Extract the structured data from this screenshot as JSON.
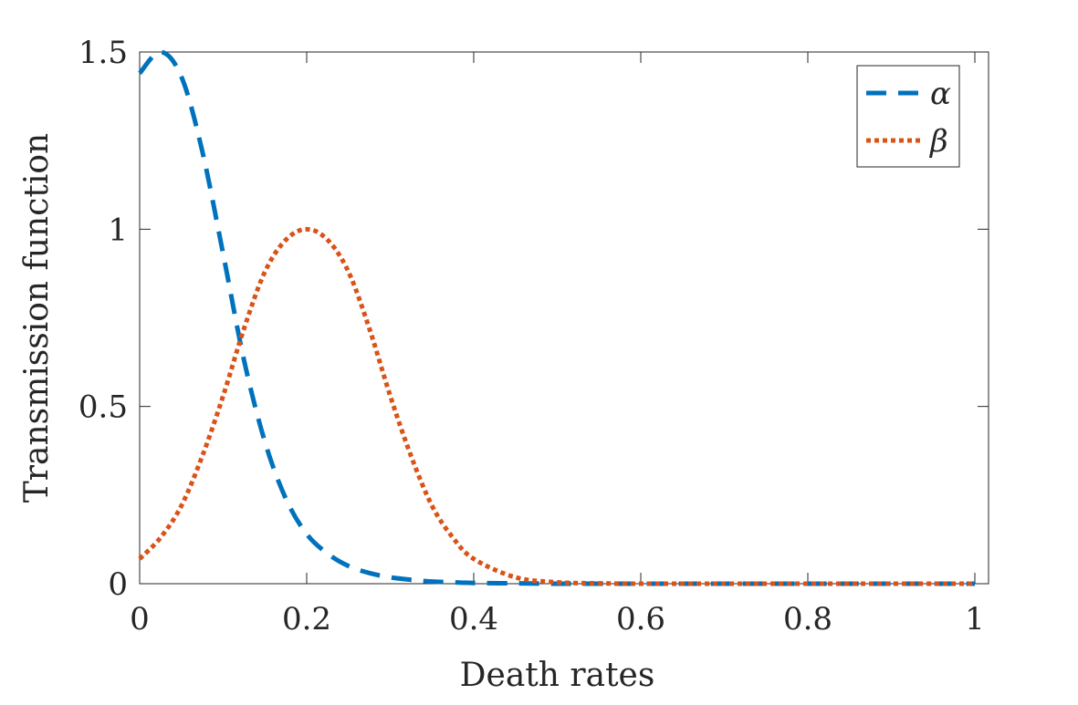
{
  "chart_data": {
    "type": "line",
    "title": "",
    "xlabel": "Death rates",
    "ylabel": "Transmission function",
    "xlim": [
      0,
      1
    ],
    "ylim": [
      0,
      1.5
    ],
    "grid": false,
    "legend_position": "top-right",
    "xticks": [
      0,
      0.2,
      0.4,
      0.6,
      0.8,
      1
    ],
    "xtick_labels": [
      "0",
      "0.2",
      "0.4",
      "0.6",
      "0.8",
      "1"
    ],
    "yticks": [
      0,
      0.5,
      1,
      1.5
    ],
    "ytick_labels": [
      "0",
      "0.5",
      "1",
      "1.5"
    ],
    "x": [
      0,
      0.025,
      0.05,
      0.075,
      0.1,
      0.125,
      0.15,
      0.175,
      0.2,
      0.225,
      0.25,
      0.275,
      0.3,
      0.325,
      0.35,
      0.375,
      0.4,
      0.45,
      0.5,
      0.55,
      0.6,
      0.7,
      0.8,
      0.9,
      1
    ],
    "series": [
      {
        "name": "α",
        "style": "dashed",
        "color": "#0072BD",
        "values": [
          1.44,
          1.5,
          1.43,
          1.22,
          0.93,
          0.63,
          0.4,
          0.24,
          0.14,
          0.085,
          0.05,
          0.03,
          0.018,
          0.011,
          0.006,
          0.004,
          0.002,
          0.001,
          0.0,
          0.0,
          0.0,
          0.0,
          0.0,
          0.0,
          0.0
        ]
      },
      {
        "name": "β",
        "style": "dotted",
        "color": "#D95319",
        "values": [
          0.07,
          0.13,
          0.22,
          0.36,
          0.53,
          0.72,
          0.88,
          0.97,
          1.0,
          0.97,
          0.88,
          0.72,
          0.53,
          0.36,
          0.22,
          0.13,
          0.07,
          0.018,
          0.004,
          0.001,
          0.0,
          0.0,
          0.0,
          0.0,
          0.0
        ]
      }
    ]
  }
}
